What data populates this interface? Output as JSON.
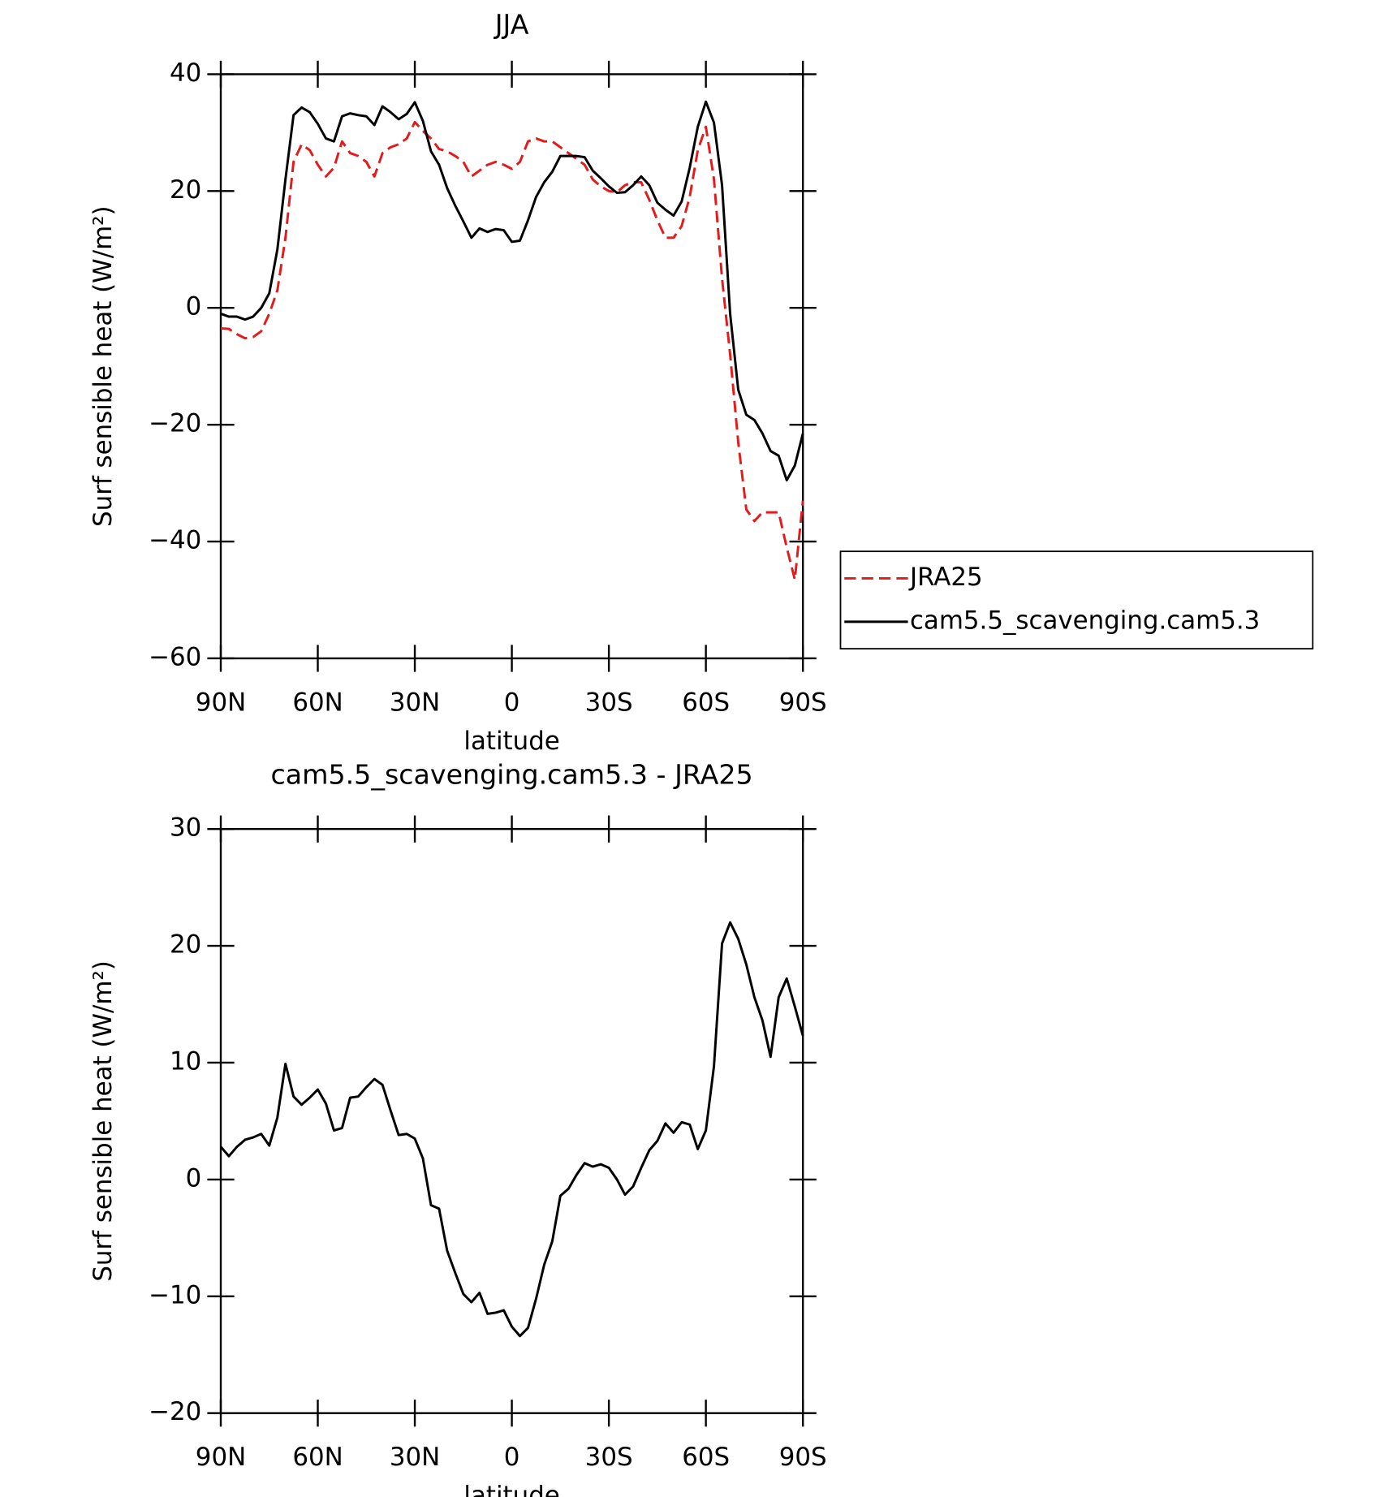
{
  "chart_data": [
    {
      "type": "line",
      "title": "JJA",
      "xlabel": "latitude",
      "ylabel": "Surf sensible heat (W/m²)",
      "x": [
        90,
        87.5,
        85,
        82.5,
        80,
        77.5,
        75,
        72.5,
        70,
        67.5,
        65,
        62.5,
        60,
        57.5,
        55,
        52.5,
        50,
        47.5,
        45,
        42.5,
        40,
        37.5,
        35,
        32.5,
        30,
        27.5,
        25,
        22.5,
        20,
        17.5,
        15,
        12.5,
        10,
        7.5,
        5,
        2.5,
        0,
        -2.5,
        -5,
        -7.5,
        -10,
        -12.5,
        -15,
        -17.5,
        -20,
        -22.5,
        -25,
        -27.5,
        -30,
        -32.5,
        -35,
        -37.5,
        -40,
        -42.5,
        -45,
        -47.5,
        -50,
        -52.5,
        -55,
        -57.5,
        -60,
        -62.5,
        -65,
        -67.5,
        -70,
        -72.5,
        -75,
        -77.5,
        -80,
        -82.5,
        -85,
        -87.5,
        -90
      ],
      "series": [
        {
          "name": "JRA25",
          "color": "#e41a1c",
          "dashed": true,
          "values": [
            -3.5,
            -3.6,
            -4.5,
            -5.2,
            -5,
            -4,
            -1,
            3,
            12,
            25,
            28,
            27,
            24.5,
            22.5,
            24,
            28.5,
            26.5,
            26,
            25,
            22.5,
            26.5,
            27.5,
            28,
            29,
            31.8,
            30.3,
            29,
            27.2,
            26.8,
            26,
            25,
            22.5,
            23.5,
            24.5,
            25,
            24.5,
            23.8,
            25,
            28.5,
            29,
            28.5,
            28.5,
            27.5,
            26.5,
            25.5,
            24.5,
            22,
            20.8,
            20,
            19.8,
            21,
            21.5,
            21.5,
            18.5,
            15,
            12,
            12,
            14,
            19,
            27,
            31,
            22,
            5,
            -8,
            -23,
            -34.5,
            -36.5,
            -35,
            -35,
            -35,
            -41,
            -46.5,
            -33
          ]
        },
        {
          "name": "cam5.5_scavenging.cam5.3",
          "color": "#000000",
          "dashed": false,
          "values": [
            -1,
            -1.5,
            -1.5,
            -2,
            -1.5,
            0,
            2.5,
            10,
            22,
            33,
            34.3,
            33.5,
            31.5,
            29,
            28.5,
            32.8,
            33.3,
            33,
            32.8,
            31.3,
            34.5,
            33.5,
            32.3,
            33.2,
            35.2,
            32,
            26.8,
            24.5,
            20.5,
            17.5,
            14.8,
            12,
            13.6,
            13,
            13.5,
            13.3,
            11.3,
            11.5,
            15,
            19,
            21.5,
            23.3,
            26,
            26,
            26,
            25.8,
            23.5,
            22.2,
            20.8,
            19.7,
            19.8,
            21,
            22.5,
            21,
            18,
            16.8,
            15.8,
            18.2,
            24,
            31,
            35.3,
            31.7,
            21,
            -1,
            -14,
            -18.3,
            -19.2,
            -21.5,
            -24.5,
            -25.3,
            -29.5,
            -27,
            -21.5
          ]
        }
      ],
      "xlim": [
        90,
        -90
      ],
      "xticks": [
        {
          "value": 90,
          "label": "90N"
        },
        {
          "value": 60,
          "label": "60N"
        },
        {
          "value": 30,
          "label": "30N"
        },
        0,
        {
          "value": -30,
          "label": "30S"
        },
        {
          "value": -60,
          "label": "60S"
        },
        {
          "value": -90,
          "label": "90S"
        }
      ],
      "ylim": [
        -60,
        40
      ],
      "yticks": [
        {
          "value": -60,
          "label": "−60"
        },
        {
          "value": -40,
          "label": "−40"
        },
        {
          "value": -20,
          "label": "−20"
        },
        0,
        20,
        40
      ],
      "legend": "right"
    },
    {
      "type": "line",
      "title": "cam5.5_scavenging.cam5.3 - JRA25",
      "xlabel": "latitude",
      "ylabel": "Surf sensible heat (W/m²)",
      "x": [
        90,
        87.5,
        85,
        82.5,
        80,
        77.5,
        75,
        72.5,
        70,
        67.5,
        65,
        62.5,
        60,
        57.5,
        55,
        52.5,
        50,
        47.5,
        45,
        42.5,
        40,
        37.5,
        35,
        32.5,
        30,
        27.5,
        25,
        22.5,
        20,
        17.5,
        15,
        12.5,
        10,
        7.5,
        5,
        2.5,
        0,
        -2.5,
        -5,
        -7.5,
        -10,
        -12.5,
        -15,
        -17.5,
        -20,
        -22.5,
        -25,
        -27.5,
        -30,
        -32.5,
        -35,
        -37.5,
        -40,
        -42.5,
        -45,
        -47.5,
        -50,
        -52.5,
        -55,
        -57.5,
        -60,
        -62.5,
        -65,
        -67.5,
        -70,
        -72.5,
        -75,
        -77.5,
        -80,
        -82.5,
        -85,
        -87.5,
        -90
      ],
      "series": [
        {
          "color": "#000000",
          "dashed": false,
          "values": [
            2.8,
            2,
            2.8,
            3.4,
            3.6,
            3.9,
            2.9,
            5.3,
            9.9,
            7.1,
            6.4,
            7,
            7.7,
            6.5,
            4.2,
            4.4,
            7,
            7.1,
            7.9,
            8.6,
            8.1,
            5.9,
            3.8,
            3.9,
            3.5,
            1.8,
            -2.2,
            -2.5,
            -6.1,
            -8,
            -9.8,
            -10.5,
            -9.7,
            -11.5,
            -11.4,
            -11.2,
            -12.6,
            -13.4,
            -12.7,
            -10.2,
            -7.3,
            -5.3,
            -1.4,
            -0.8,
            0.4,
            1.4,
            1.1,
            1.3,
            1,
            0,
            -1.3,
            -0.6,
            1,
            2.5,
            3.3,
            4.8,
            4,
            4.9,
            4.7,
            2.6,
            4.2,
            9.7,
            20.2,
            22,
            20.6,
            18.4,
            15.6,
            13.6,
            10.5,
            15.6,
            17.2,
            14.8,
            12.3
          ]
        }
      ],
      "xlim": [
        90,
        -90
      ],
      "xticks": [
        {
          "value": 90,
          "label": "90N"
        },
        {
          "value": 60,
          "label": "60N"
        },
        {
          "value": 30,
          "label": "30N"
        },
        0,
        {
          "value": -30,
          "label": "30S"
        },
        {
          "value": -60,
          "label": "60S"
        },
        {
          "value": -90,
          "label": "90S"
        }
      ],
      "ylim": [
        -20,
        30
      ],
      "yticks": [
        {
          "value": -20,
          "label": "−20"
        },
        {
          "value": -10,
          "label": "−10"
        },
        0,
        10,
        20,
        30
      ]
    }
  ]
}
